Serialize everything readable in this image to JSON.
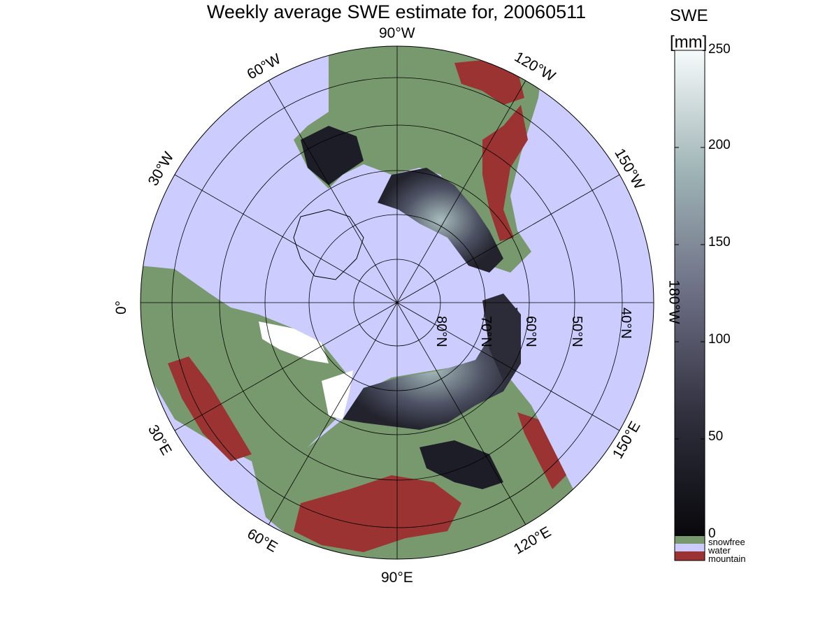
{
  "title": "Weekly average SWE estimate for, 20060511",
  "colorbar": {
    "title_line1": "SWE",
    "title_line2": "[mm]",
    "ticks": [
      "0",
      "50",
      "100",
      "150",
      "200",
      "250"
    ],
    "range": [
      0,
      250
    ],
    "legend": [
      {
        "label": "snowfree",
        "color": "#78996e"
      },
      {
        "label": "water",
        "color": "#ccccff"
      },
      {
        "label": "mountain",
        "color": "#9b3333"
      }
    ]
  },
  "map": {
    "projection": "north polar stereographic",
    "longitude_labels": [
      "90°W",
      "60°W",
      "120°W",
      "30°W",
      "150°W",
      "0°",
      "180°W",
      "30°E",
      "150°E",
      "60°E",
      "120°E",
      "90°E"
    ],
    "latitude_labels": [
      "80°N",
      "70°N",
      "60°N",
      "50°N",
      "40°N"
    ],
    "colors": {
      "snowfree": "#78996e",
      "water": "#ccccff",
      "mountain": "#9b3333",
      "snow_dark": "#1c1c25",
      "snow_mid": "#5a5d6e",
      "snow_light": "#a3b8b8"
    }
  }
}
